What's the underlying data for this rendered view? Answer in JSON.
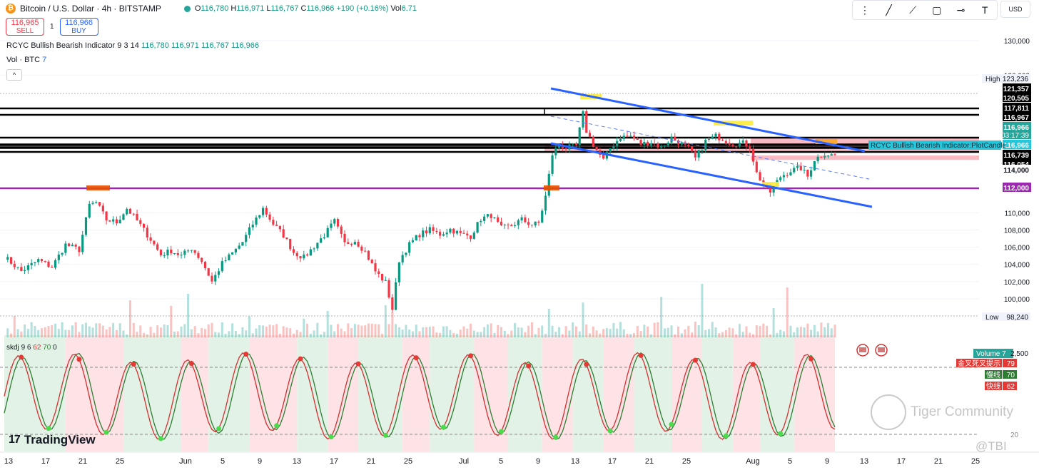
{
  "header": {
    "title": "Bitcoin / U.S. Dollar · 4h · BITSTAMP",
    "ohlc": {
      "O": "116,780",
      "H": "116,971",
      "L": "116,767",
      "C": "116,966",
      "change": "+190 (+0.16%)",
      "vol_label": "Vol",
      "vol": "6.71"
    }
  },
  "trade": {
    "sell_price": "116,965",
    "sell_label": "SELL",
    "spread": "1",
    "buy_price": "116,966",
    "buy_label": "BUY"
  },
  "indicators": {
    "rcyc": {
      "name": "RCYC Bullish Bearish Indicator",
      "params": "9 3 14",
      "values": [
        "116,780",
        "116,971",
        "116,767",
        "116,966"
      ]
    },
    "vol": {
      "name": "Vol · BTC",
      "param": "7"
    },
    "skdj": {
      "name": "skdj",
      "params": "9 6",
      "k": "62",
      "d": "70",
      "extra": "0"
    }
  },
  "toolbar": {
    "icons": [
      "drag-handle-icon",
      "trend-line-icon",
      "path-icon",
      "rectangle-icon",
      "horizontal-line-icon",
      "text-icon"
    ]
  },
  "currency": "USD",
  "logo": {
    "text": "TradingView"
  },
  "watermark": {
    "text": "Tiger Community",
    "tag": "@TBI"
  },
  "chart_data": {
    "type": "candlestick",
    "title": "Bitcoin / U.S. Dollar · 4h · BITSTAMP",
    "price_axis": {
      "ticks": [
        130000,
        126000,
        110000,
        108000,
        106000,
        104000,
        102000,
        100000
      ],
      "tick_labels": [
        "130,000",
        "126,000",
        "110,000",
        "108,000",
        "106,000",
        "104,000",
        "102,000",
        "100,000"
      ],
      "ylim": [
        97000,
        131500
      ]
    },
    "price_labels": [
      {
        "text": "High",
        "value": "123,236",
        "kind": "high"
      },
      {
        "text": "",
        "value": "121,357",
        "kind": "black"
      },
      {
        "text": "",
        "value": "120,505",
        "kind": "black"
      },
      {
        "text": "",
        "value": "117,811",
        "kind": "black"
      },
      {
        "text": "",
        "value": "116,967",
        "kind": "black"
      },
      {
        "text": "",
        "value": "116,966",
        "kind": "teal",
        "sub": "03:17:39"
      },
      {
        "text": "",
        "value": "116,966",
        "kind": "teal2"
      },
      {
        "text": "",
        "value": "116,739",
        "kind": "black"
      },
      {
        "text": "",
        "value": "116,054",
        "kind": "black"
      },
      {
        "text": "",
        "value": "114,000",
        "kind": "plain"
      },
      {
        "text": "",
        "value": "112,000",
        "kind": "purple"
      },
      {
        "text": "Low",
        "value": "98,240",
        "kind": "low"
      }
    ],
    "plot_label": "RCYC Bullish Bearish Indicator:PlotCandle",
    "volume_label": {
      "text": "Volume",
      "value": "7",
      "axis": "2,500"
    },
    "horizontal_levels": [
      121357,
      120505,
      117811,
      116967,
      116739,
      116054,
      112000
    ],
    "time_axis": {
      "labels": [
        "13",
        "17",
        "21",
        "25",
        "Jun",
        "5",
        "9",
        "13",
        "17",
        "21",
        "25",
        "Jul",
        "5",
        "9",
        "13",
        "17",
        "21",
        "25",
        "Aug",
        "5",
        "9",
        "13",
        "17",
        "21",
        "25"
      ]
    },
    "channel": {
      "upper": [
        [
          "Jul 9",
          123400
        ],
        [
          "Aug 9",
          117100
        ]
      ],
      "lower": [
        [
          "Jul 9",
          117000
        ],
        [
          "Aug 14",
          110000
        ]
      ]
    },
    "close_path": [
      [
        0,
        104900
      ],
      [
        5,
        103200
      ],
      [
        10,
        104500
      ],
      [
        14,
        103700
      ],
      [
        18,
        106300
      ],
      [
        22,
        105700
      ],
      [
        25,
        110900
      ],
      [
        27,
        111200
      ],
      [
        30,
        109200
      ],
      [
        33,
        108900
      ],
      [
        36,
        110500
      ],
      [
        39,
        109100
      ],
      [
        43,
        106900
      ],
      [
        46,
        105100
      ],
      [
        49,
        105600
      ],
      [
        52,
        105000
      ],
      [
        55,
        105900
      ],
      [
        58,
        104400
      ],
      [
        61,
        102000
      ],
      [
        64,
        104100
      ],
      [
        67,
        105300
      ],
      [
        70,
        106600
      ],
      [
        73,
        108700
      ],
      [
        76,
        110500
      ],
      [
        79,
        108700
      ],
      [
        82,
        107400
      ],
      [
        85,
        105400
      ],
      [
        88,
        104800
      ],
      [
        91,
        106100
      ],
      [
        94,
        107400
      ],
      [
        97,
        109000
      ],
      [
        100,
        106400
      ],
      [
        103,
        106800
      ],
      [
        106,
        105500
      ],
      [
        109,
        103200
      ],
      [
        112,
        101900
      ],
      [
        114,
        98800
      ],
      [
        116,
        104500
      ],
      [
        119,
        106300
      ],
      [
        122,
        107500
      ],
      [
        125,
        108000
      ],
      [
        128,
        107500
      ],
      [
        131,
        108100
      ],
      [
        134,
        107500
      ],
      [
        137,
        107300
      ],
      [
        140,
        109300
      ],
      [
        143,
        109700
      ],
      [
        146,
        108200
      ],
      [
        149,
        108500
      ],
      [
        152,
        109200
      ],
      [
        155,
        108600
      ],
      [
        157,
        108800
      ],
      [
        159,
        111900
      ],
      [
        161,
        116800
      ],
      [
        163,
        117900
      ],
      [
        165,
        117500
      ],
      [
        168,
        117800
      ],
      [
        170,
        121500
      ],
      [
        171,
        119500
      ],
      [
        173,
        117900
      ],
      [
        176,
        116100
      ],
      [
        178,
        117500
      ],
      [
        181,
        118800
      ],
      [
        184,
        118900
      ],
      [
        187,
        118000
      ],
      [
        190,
        118200
      ],
      [
        193,
        117600
      ],
      [
        196,
        118700
      ],
      [
        199,
        118000
      ],
      [
        201,
        117400
      ],
      [
        203,
        116300
      ],
      [
        206,
        118300
      ],
      [
        209,
        118900
      ],
      [
        211,
        118600
      ],
      [
        214,
        118000
      ],
      [
        217,
        118100
      ],
      [
        219,
        117700
      ],
      [
        221,
        114600
      ],
      [
        223,
        113300
      ],
      [
        225,
        112400
      ],
      [
        228,
        114200
      ],
      [
        231,
        114900
      ],
      [
        234,
        115200
      ],
      [
        236,
        114200
      ],
      [
        238,
        116200
      ],
      [
        241,
        116900
      ],
      [
        243,
        116700
      ]
    ],
    "skdj_axis": {
      "labels": [
        "金叉死叉提示",
        "慢线",
        "快线"
      ],
      "values": [
        "79",
        "70",
        "62"
      ],
      "ticks": [
        "20"
      ]
    }
  }
}
